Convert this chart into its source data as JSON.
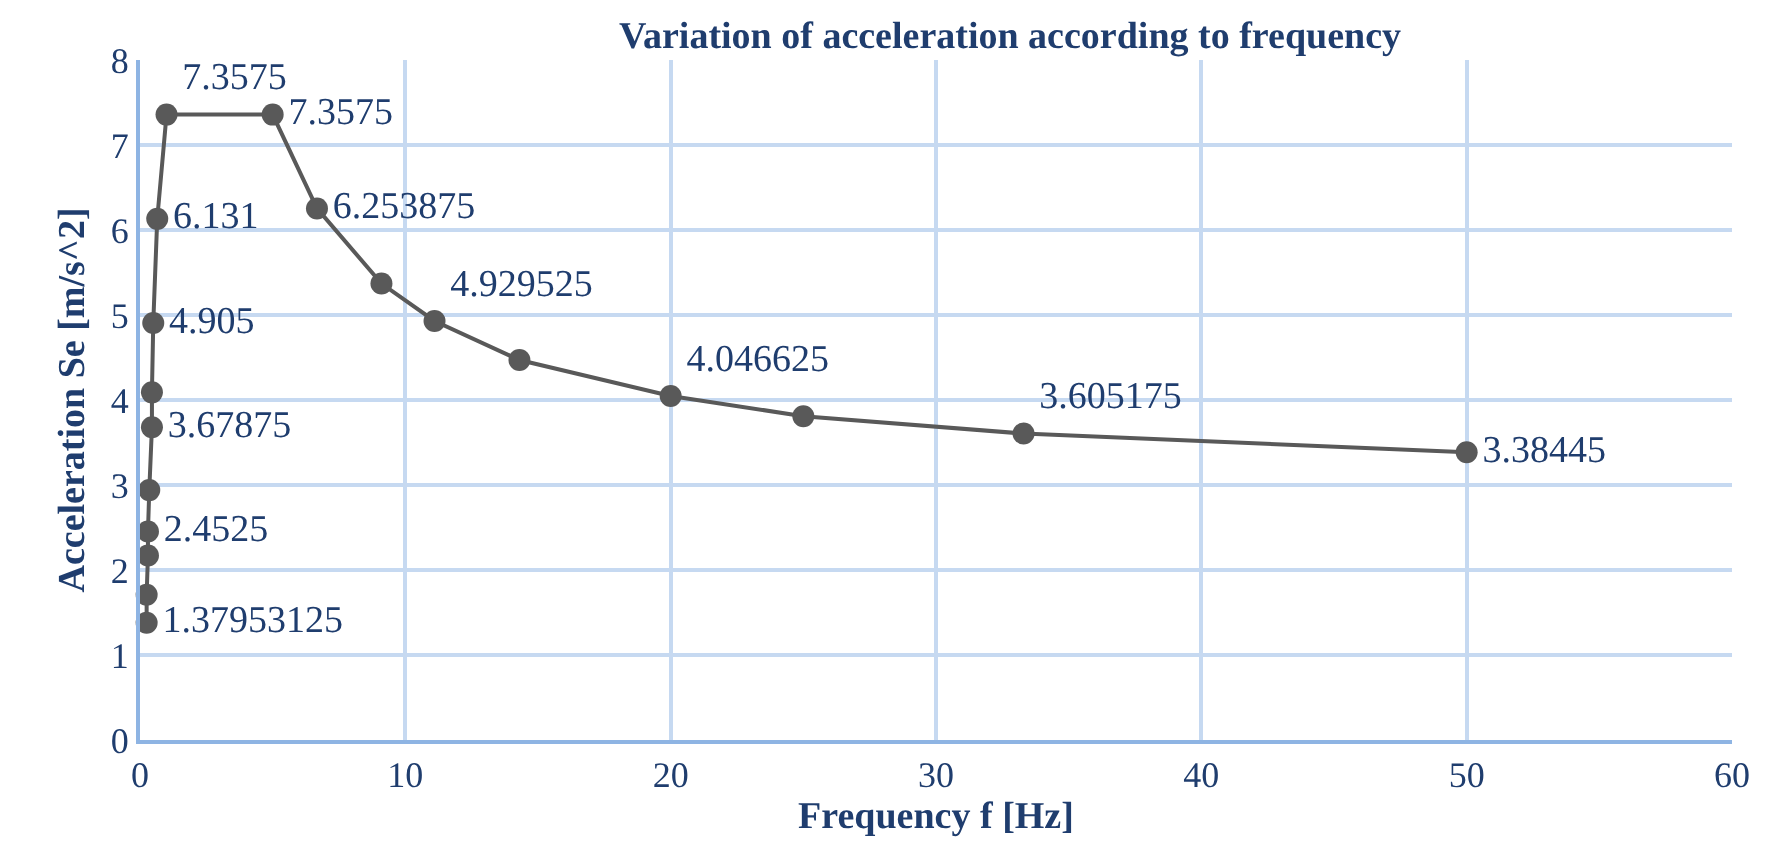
{
  "chart_data": {
    "type": "line",
    "title": "Variation of acceleration according to frequency",
    "xlabel": "Frequency f [Hz]",
    "ylabel": "Acceleration Se [m/s^2]",
    "x": [
      0.25,
      0.25,
      0.3,
      0.3,
      0.35,
      0.45,
      0.45,
      0.5,
      0.65,
      1.0,
      5.0,
      6.67,
      9.1,
      11.1,
      14.3,
      20,
      25,
      33.3,
      50
    ],
    "series": [
      {
        "color": "#595959",
        "values": [
          1.37953125,
          1.71,
          2.17,
          2.4525,
          2.94,
          3.67875,
          4.09,
          4.905,
          6.131,
          7.3575,
          7.3575,
          6.253875,
          5.37,
          4.929525,
          4.47,
          4.046625,
          3.81,
          3.605175,
          3.38445
        ],
        "value_labels": [
          "1.37953125",
          null,
          null,
          "2.4525",
          null,
          "3.67875",
          null,
          "4.905",
          "6.131",
          "7.3575",
          "7.3575",
          "6.253875",
          null,
          "4.929525",
          null,
          "4.046625",
          null,
          "3.605175",
          "3.38445"
        ]
      }
    ],
    "xlim": [
      0,
      60
    ],
    "xticks": [
      0,
      10,
      20,
      30,
      40,
      50,
      60
    ],
    "ylim": [
      0,
      8
    ],
    "yticks": [
      0,
      1,
      2,
      3,
      4,
      5,
      6,
      7,
      8
    ],
    "grid": true,
    "marker": "circle",
    "line_style": "solid"
  }
}
